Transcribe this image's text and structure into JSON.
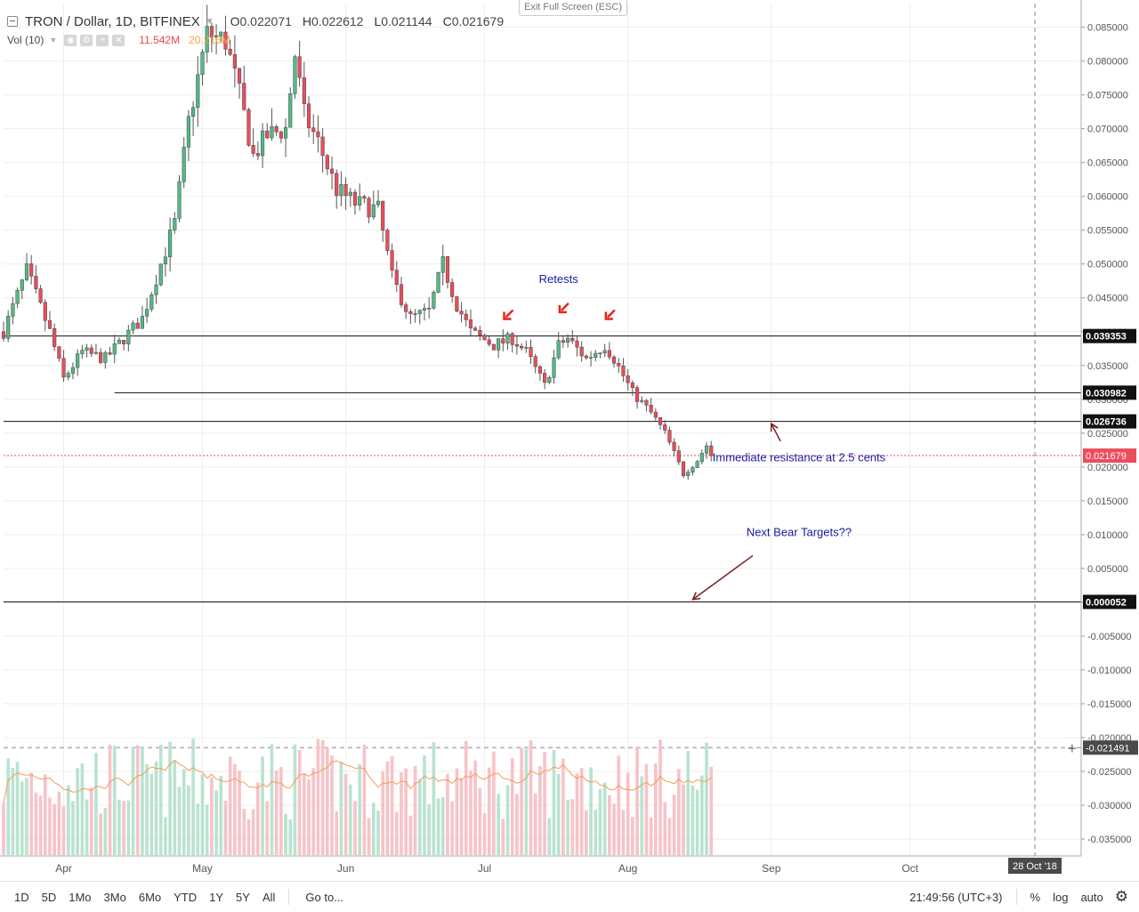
{
  "header": {
    "symbol": "TRON / Dollar, 1D, BITFINEX",
    "open_label": "O",
    "open": "0.022071",
    "high_label": "H",
    "high": "0.022612",
    "low_label": "L",
    "low": "0.021144",
    "close_label": "C",
    "close": "0.021679"
  },
  "volume_indicator": {
    "label": "Vol (10)",
    "value": "11.542M",
    "ma_value": "20.216M"
  },
  "exit_fullscreen": "Exit Full Screen (ESC)",
  "colors": {
    "up": "#53b987",
    "down": "#eb4d5c",
    "vol_up": "#b9e3d0",
    "vol_down": "#f7c3c8",
    "vol_ma": "#f39c5a",
    "annotation": "#1a1aa0",
    "arrow": "#7a1f1f",
    "marker": "#e8231c",
    "current_price": "#eb4d5c"
  },
  "toolbar": {
    "ranges": [
      "1D",
      "5D",
      "1Mo",
      "3Mo",
      "6Mo",
      "YTD",
      "1Y",
      "5Y",
      "All"
    ],
    "goto": "Go to...",
    "time": "21:49:56 (UTC+3)",
    "percent": "%",
    "log": "log",
    "auto": "auto",
    "settings_icon": "gear-icon"
  },
  "chart_data": {
    "type": "candlestick",
    "title": "TRON / Dollar, 1D, BITFINEX",
    "y_axis_ticks": [
      "0.085000",
      "0.080000",
      "0.075000",
      "0.070000",
      "0.065000",
      "0.060000",
      "0.055000",
      "0.050000",
      "0.045000",
      "0.040000",
      "0.035000",
      "0.030000",
      "0.025000",
      "0.020000",
      "0.015000",
      "0.010000",
      "0.005000",
      "0.000000",
      "-0.005000",
      "-0.010000",
      "-0.015000",
      "-0.020000",
      "-0.025000",
      "-0.030000",
      "-0.035000"
    ],
    "ylim": [
      -0.0375,
      0.0885
    ],
    "x_axis_ticks": [
      "Apr",
      "May",
      "Jun",
      "Jul",
      "Aug",
      "Sep",
      "Oct"
    ],
    "x_range": [
      "2018-03-19",
      "2018-11-07"
    ],
    "crosshair_date_label": "28 Oct '18",
    "crosshair_date": "2018-10-28",
    "crosshair_price_label": "-0.021491",
    "crosshair_price": -0.021491,
    "horizontal_levels": [
      {
        "value": 0.039353,
        "label": "0.039353",
        "from": "2018-03-19"
      },
      {
        "value": 0.030982,
        "label": "0.030982",
        "from": "2018-04-12"
      },
      {
        "value": 0.026736,
        "label": "0.026736",
        "from": "2018-03-19"
      },
      {
        "value": 5.2e-05,
        "label": "0.000052",
        "from": "2018-03-19"
      }
    ],
    "current_price": {
      "value": 0.021679,
      "label": "0.021679"
    },
    "annotations": [
      {
        "text": "Retests",
        "date": "2018-07-17",
        "price": 0.0472
      },
      {
        "text": "Immediate resistance at 2.5 cents",
        "date": "2018-09-07",
        "price": 0.0208
      },
      {
        "text": "Next Bear Targets??",
        "date": "2018-09-07",
        "price": 0.0098
      }
    ],
    "markers": [
      {
        "date": "2018-07-06",
        "price": 0.0424
      },
      {
        "date": "2018-07-18",
        "price": 0.0434
      },
      {
        "date": "2018-07-28",
        "price": 0.0424
      }
    ],
    "arrows": [
      {
        "from_date": "2018-09-03",
        "from_price": 0.0238,
        "to_date": "2018-09-01",
        "to_price": 0.0264
      },
      {
        "from_date": "2018-08-28",
        "from_price": 0.0069,
        "to_date": "2018-08-15",
        "to_price": 0.0004
      }
    ],
    "series": [
      {
        "name": "Vol (10)",
        "type": "volume",
        "value_label": "11.542M",
        "ma_label": "20.216M"
      }
    ],
    "waypoints": [
      [
        "2018-03-19",
        0.04
      ],
      [
        "2018-03-24",
        0.049
      ],
      [
        "2018-03-29",
        0.04
      ],
      [
        "2018-04-01",
        0.033
      ],
      [
        "2018-04-05",
        0.037
      ],
      [
        "2018-04-10",
        0.036
      ],
      [
        "2018-04-18",
        0.042
      ],
      [
        "2018-04-25",
        0.056
      ],
      [
        "2018-04-28",
        0.071
      ],
      [
        "2018-05-02",
        0.084
      ],
      [
        "2018-05-06",
        0.083
      ],
      [
        "2018-05-09",
        0.075
      ],
      [
        "2018-05-12",
        0.066
      ],
      [
        "2018-05-15",
        0.069
      ],
      [
        "2018-05-19",
        0.07
      ],
      [
        "2018-05-21",
        0.081
      ],
      [
        "2018-05-23",
        0.072
      ],
      [
        "2018-05-26",
        0.068
      ],
      [
        "2018-05-30",
        0.061
      ],
      [
        "2018-06-03",
        0.059
      ],
      [
        "2018-06-08",
        0.058
      ],
      [
        "2018-06-11",
        0.048
      ],
      [
        "2018-06-15",
        0.042
      ],
      [
        "2018-06-19",
        0.043
      ],
      [
        "2018-06-22",
        0.05
      ],
      [
        "2018-06-25",
        0.044
      ],
      [
        "2018-06-28",
        0.04
      ],
      [
        "2018-07-03",
        0.038
      ],
      [
        "2018-07-07",
        0.039
      ],
      [
        "2018-07-10",
        0.037
      ],
      [
        "2018-07-14",
        0.032
      ],
      [
        "2018-07-17",
        0.038
      ],
      [
        "2018-07-19",
        0.039
      ],
      [
        "2018-07-23",
        0.036
      ],
      [
        "2018-07-27",
        0.038
      ],
      [
        "2018-07-29",
        0.036
      ],
      [
        "2018-08-02",
        0.031
      ],
      [
        "2018-08-06",
        0.028
      ],
      [
        "2018-08-09",
        0.025
      ],
      [
        "2018-08-13",
        0.019
      ],
      [
        "2018-08-16",
        0.021
      ],
      [
        "2018-08-18",
        0.0232
      ],
      [
        "2018-08-19",
        0.0217
      ]
    ]
  }
}
